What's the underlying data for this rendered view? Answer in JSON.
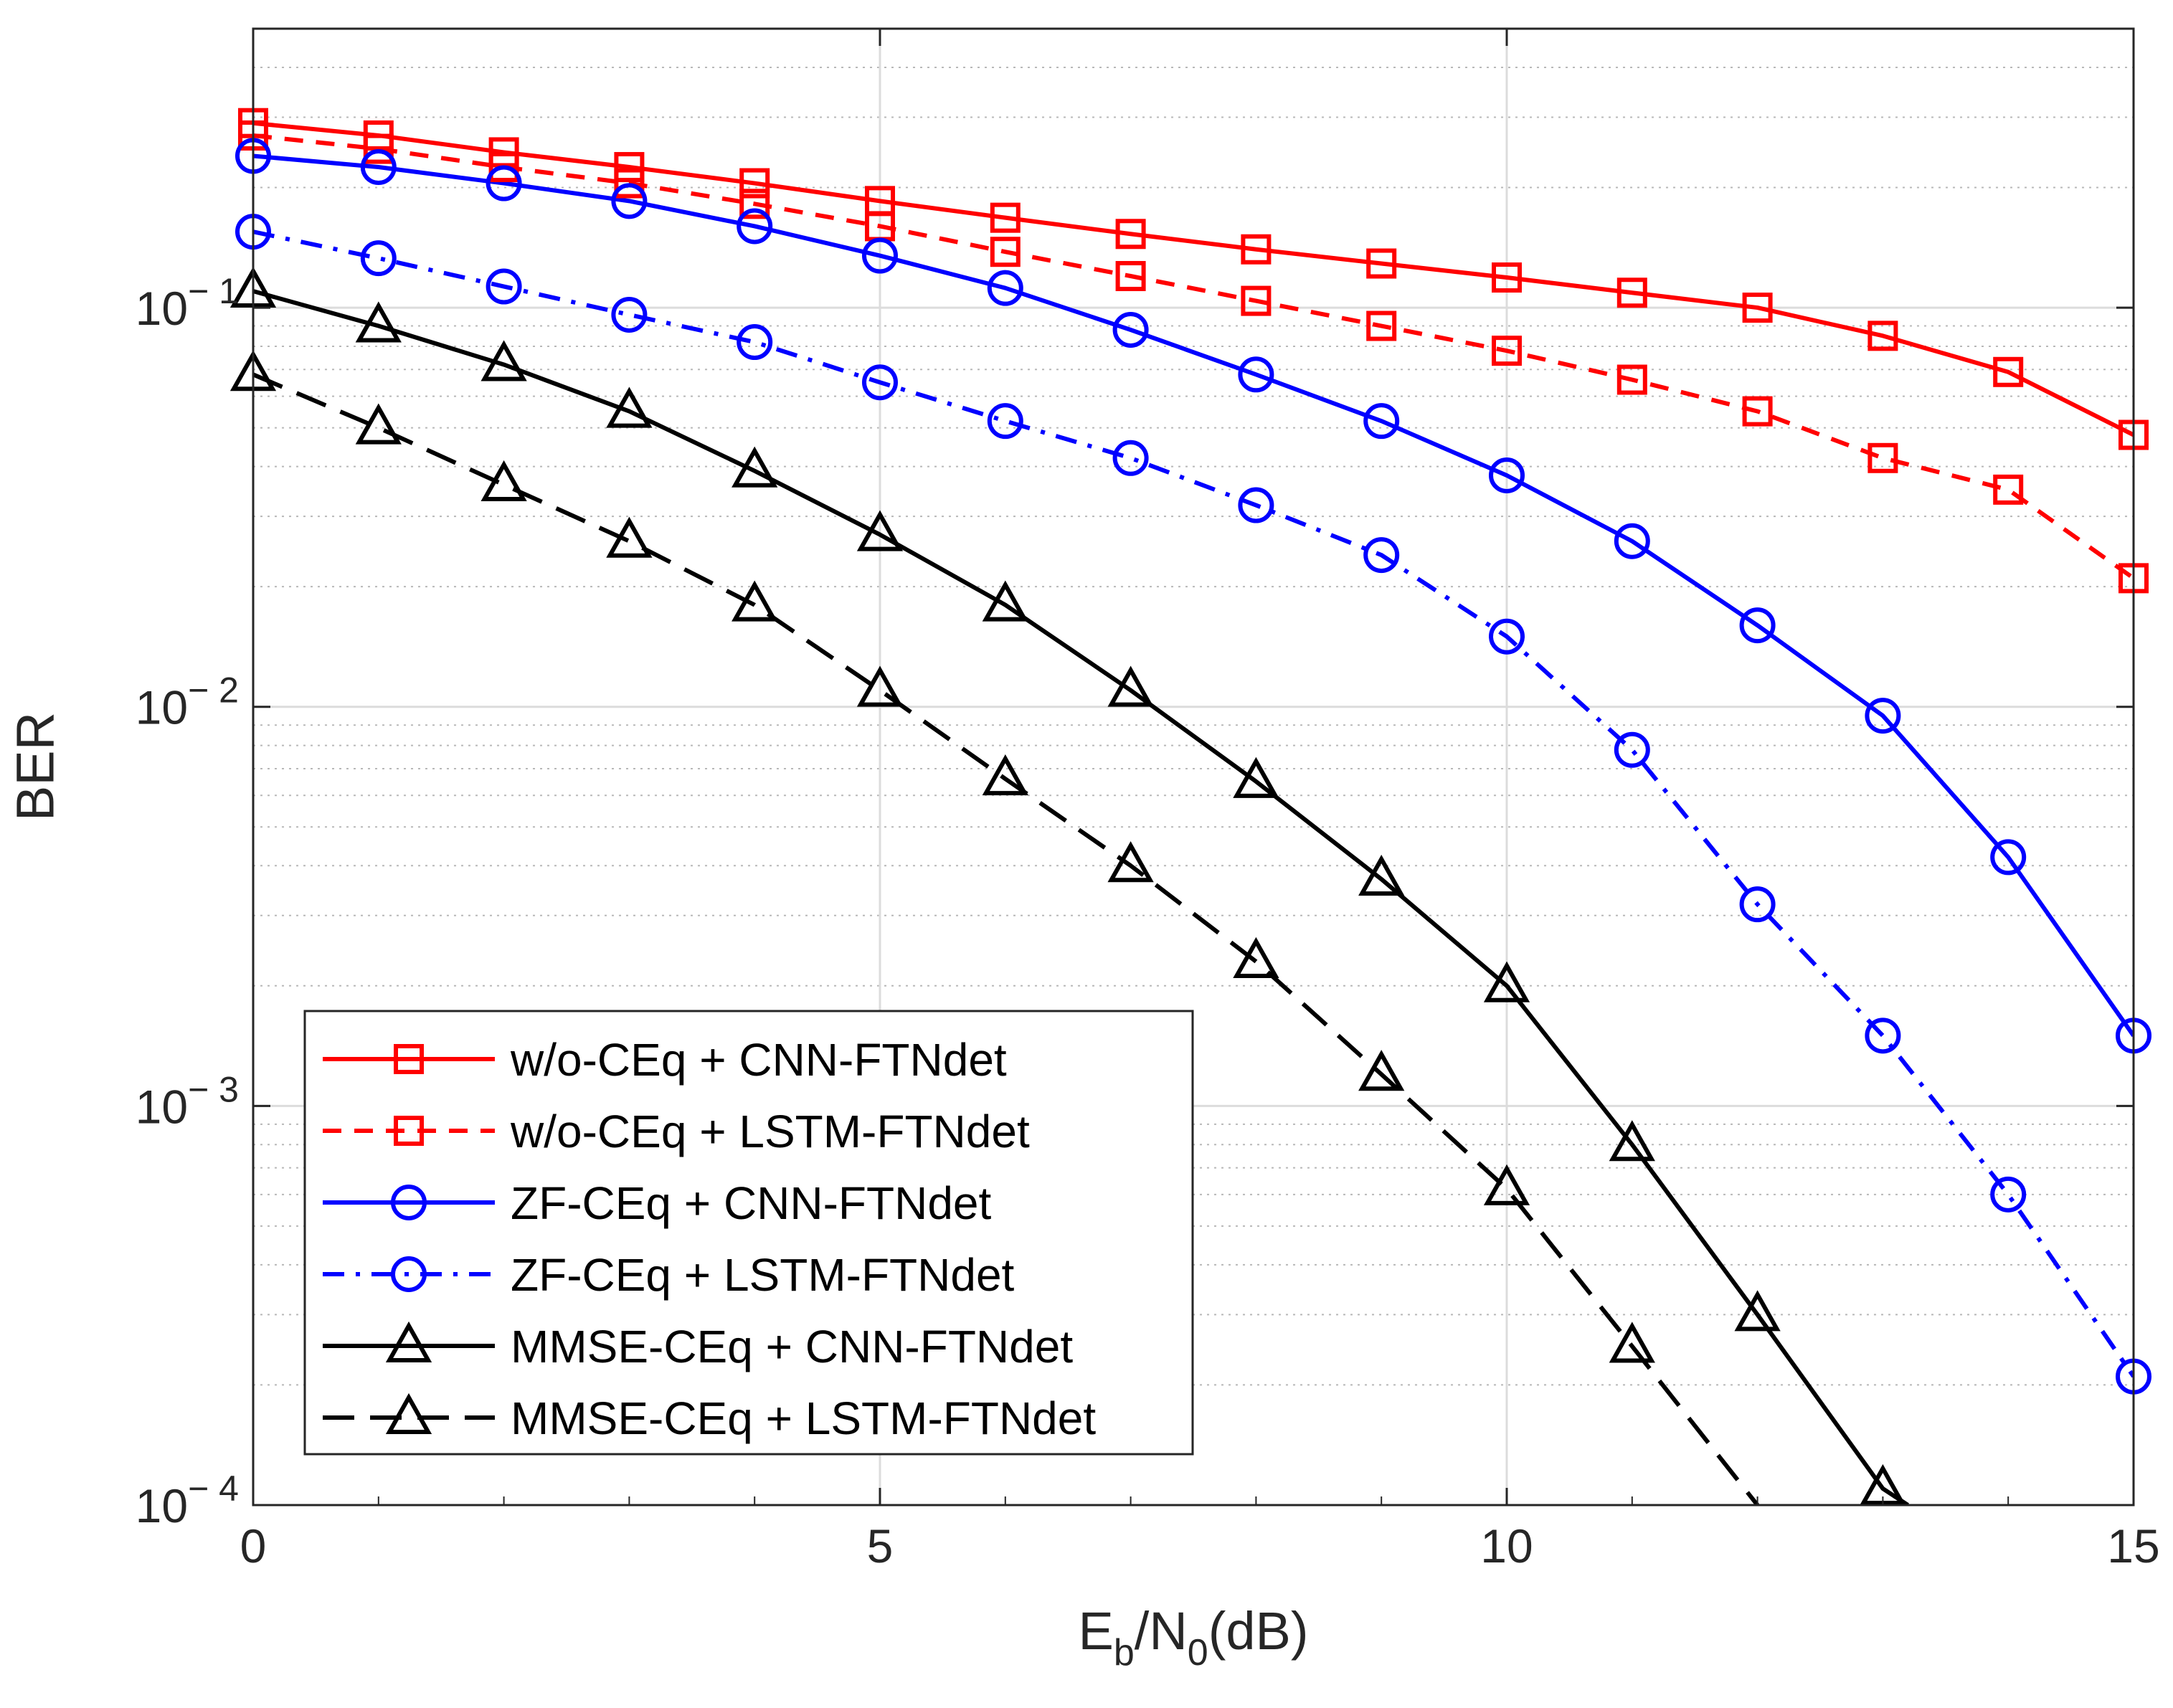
{
  "chart_data": {
    "type": "line",
    "title": "",
    "xlabel": {
      "main": "E",
      "sub1": "b",
      "mid": "/N",
      "sub2": "0",
      "tail": "(dB)"
    },
    "ylabel": "BER",
    "xlim": [
      0,
      15
    ],
    "ylim": [
      0.0001,
      0.5
    ],
    "yscale": "log",
    "grid": true,
    "minor_grid": true,
    "legend_position": "bottom-left",
    "x_ticks": [
      {
        "value": 0,
        "label": "0"
      },
      {
        "value": 5,
        "label": "5"
      },
      {
        "value": 10,
        "label": "10"
      },
      {
        "value": 15,
        "label": "15"
      }
    ],
    "y_ticks": [
      {
        "value": 0.1,
        "base": "10",
        "exp": "− 1"
      },
      {
        "value": 0.01,
        "base": "10",
        "exp": "− 2"
      },
      {
        "value": 0.001,
        "base": "10",
        "exp": "− 3"
      },
      {
        "value": 0.0001,
        "base": "10",
        "exp": "− 4"
      }
    ],
    "x": [
      0,
      1,
      2,
      3,
      4,
      5,
      6,
      7,
      8,
      9,
      10,
      11,
      12,
      13,
      14,
      15
    ],
    "series": [
      {
        "name": "w/o-CEq + CNN-FTNdet",
        "color": "#ff0000",
        "dash": "solid",
        "marker": "square",
        "values": [
          0.29,
          0.27,
          0.245,
          0.225,
          0.205,
          0.185,
          0.168,
          0.153,
          0.14,
          0.129,
          0.119,
          0.109,
          0.1,
          0.085,
          0.069,
          0.048
        ]
      },
      {
        "name": "w/o-CEq + LSTM-FTNdet",
        "color": "#ff0000",
        "dash": "dashed",
        "marker": "square",
        "values": [
          0.27,
          0.25,
          0.225,
          0.205,
          0.182,
          0.16,
          0.138,
          0.12,
          0.104,
          0.09,
          0.078,
          0.066,
          0.055,
          0.042,
          0.035,
          0.021
        ]
      },
      {
        "name": "ZF-CEq + CNN-FTNdet",
        "color": "#0000ff",
        "dash": "solid",
        "marker": "circle",
        "values": [
          0.24,
          0.225,
          0.205,
          0.185,
          0.16,
          0.135,
          0.112,
          0.088,
          0.068,
          0.052,
          0.038,
          0.026,
          0.016,
          0.0095,
          0.0042,
          0.0015
        ]
      },
      {
        "name": "ZF-CEq + LSTM-FTNdet",
        "color": "#0000ff",
        "dash": "dashdot",
        "marker": "circle",
        "values": [
          0.155,
          0.133,
          0.113,
          0.096,
          0.082,
          0.065,
          0.052,
          0.042,
          0.032,
          0.024,
          0.015,
          0.0078,
          0.0032,
          0.0015,
          0.0006,
          0.00021
        ]
      },
      {
        "name": "MMSE-CEq + CNN-FTNdet",
        "color": "#000000",
        "dash": "solid",
        "marker": "triangle",
        "values": [
          0.11,
          0.09,
          0.072,
          0.055,
          0.039,
          0.027,
          0.018,
          0.011,
          0.0065,
          0.0037,
          0.002,
          0.0008,
          0.0003,
          0.00011,
          null,
          null
        ],
        "line_end": {
          "x": 13.2,
          "y": 0.0001
        }
      },
      {
        "name": "MMSE-CEq + LSTM-FTNdet",
        "color": "#000000",
        "dash": "longdash",
        "marker": "triangle",
        "values": [
          0.068,
          0.05,
          0.036,
          0.026,
          0.018,
          0.011,
          0.0066,
          0.004,
          0.0023,
          0.0012,
          0.00062,
          0.00025,
          null,
          null,
          null,
          null
        ],
        "line_end": {
          "x": 12.0,
          "y": 0.0001
        }
      }
    ]
  }
}
